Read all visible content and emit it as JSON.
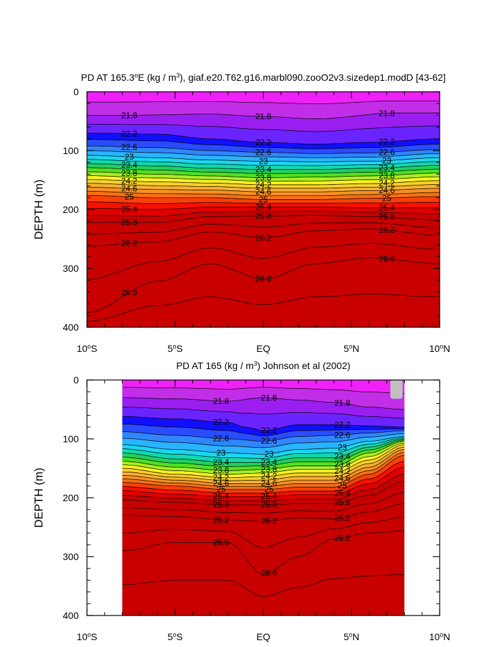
{
  "chart_data": [
    {
      "type": "contour",
      "title": "PD AT 165.3°E (kg / m³), giaf.e20.T62.g16.marbl090.zooO2v3.sizedep1.modD [43-62]",
      "xlabel": "",
      "ylabel": "DEPTH (m)",
      "xlim": [
        -10,
        10
      ],
      "ylim": [
        0,
        400
      ],
      "y_reversed": true,
      "x_ticks": [
        "10°S",
        "5°S",
        "EQ",
        "5°N",
        "10°N"
      ],
      "y_ticks": [
        "0",
        "100",
        "200",
        "300",
        "400"
      ],
      "contour_interval": 0.2,
      "contour_range": [
        21.6,
        27.0
      ],
      "data_extent_x": [
        -10,
        10
      ],
      "series": [
        {
          "name": "21.8",
          "x": [
            -8,
            -3,
            0,
            3,
            7.5
          ],
          "y": [
            40,
            38,
            42,
            46,
            36
          ]
        },
        {
          "name": "22.2",
          "x": [
            -10,
            -6,
            -3,
            0,
            3,
            6,
            10
          ],
          "y": [
            70,
            72,
            80,
            86,
            89,
            86,
            80
          ]
        },
        {
          "name": "22.6",
          "x": [
            -10,
            -6,
            -3,
            0,
            3,
            6,
            10
          ],
          "y": [
            92,
            95,
            100,
            103,
            105,
            104,
            98
          ]
        },
        {
          "name": "23",
          "x": [
            -10,
            -6,
            -3,
            0,
            3,
            6,
            10
          ],
          "y": [
            108,
            112,
            116,
            118,
            119,
            118,
            112
          ]
        },
        {
          "name": "23.4",
          "x": [
            -10,
            -6,
            -3,
            0,
            3,
            6,
            10
          ],
          "y": [
            122,
            126,
            130,
            132,
            132,
            130,
            125
          ]
        },
        {
          "name": "23.8",
          "x": [
            -10,
            -6,
            -3,
            0,
            3,
            6,
            10
          ],
          "y": [
            136,
            140,
            143,
            146,
            145,
            143,
            138
          ]
        },
        {
          "name": "24.2",
          "x": [
            -10,
            -6,
            -3,
            0,
            3,
            6,
            10
          ],
          "y": [
            149,
            153,
            155,
            158,
            158,
            156,
            151
          ]
        },
        {
          "name": "24.6",
          "x": [
            -10,
            -6,
            -3,
            0,
            3,
            6,
            10
          ],
          "y": [
            162,
            166,
            167,
            170,
            170,
            168,
            164
          ]
        },
        {
          "name": "25",
          "x": [
            -10,
            -6,
            -3,
            0,
            3,
            6,
            10
          ],
          "y": [
            176,
            180,
            180,
            183,
            183,
            181,
            178
          ]
        },
        {
          "name": "25.4",
          "x": [
            -10,
            -6,
            -3,
            0,
            3,
            6,
            10
          ],
          "y": [
            198,
            200,
            196,
            196,
            196,
            197,
            197
          ]
        },
        {
          "name": "25.8",
          "x": [
            -10,
            -6,
            -3,
            0,
            3,
            6,
            10
          ],
          "y": [
            222,
            222,
            212,
            211,
            210,
            212,
            218
          ]
        },
        {
          "name": "26.2",
          "x": [
            -10,
            -6,
            -3,
            0,
            3,
            6,
            10
          ],
          "y": [
            262,
            255,
            238,
            248,
            236,
            233,
            244
          ]
        },
        {
          "name": "26.6",
          "x": [
            -10,
            -6,
            -3,
            0,
            3,
            6,
            10
          ],
          "y": [
            375,
            322,
            292,
            318,
            292,
            282,
            292
          ]
        }
      ]
    },
    {
      "type": "contour",
      "title": "PD AT 165 (kg / m³) Johnson et al (2002)",
      "xlabel": "",
      "ylabel": "DEPTH (m)",
      "xlim": [
        -10,
        10
      ],
      "ylim": [
        0,
        400
      ],
      "y_reversed": true,
      "x_ticks": [
        "10°S",
        "5°S",
        "EQ",
        "5°N",
        "10°N"
      ],
      "y_ticks": [
        "0",
        "100",
        "200",
        "300",
        "400"
      ],
      "contour_interval": 0.2,
      "contour_range": [
        21.6,
        27.0
      ],
      "data_extent_x": [
        -8,
        8
      ],
      "series": [
        {
          "name": "21.8",
          "x": [
            -8,
            -5,
            -2,
            0,
            2,
            4,
            6,
            8
          ],
          "y": [
            30,
            32,
            36,
            30,
            34,
            38,
            46,
            50
          ]
        },
        {
          "name": "22.2",
          "x": [
            -8,
            -5,
            -2,
            -1,
            0,
            2,
            4,
            6,
            8
          ],
          "y": [
            62,
            66,
            72,
            80,
            86,
            76,
            76,
            78,
            80
          ]
        },
        {
          "name": "22.6",
          "x": [
            -8,
            -5,
            -2,
            0,
            2,
            4,
            6,
            8
          ],
          "y": [
            88,
            94,
            100,
            104,
            96,
            94,
            90,
            86
          ]
        },
        {
          "name": "23",
          "x": [
            -8,
            -5,
            -2,
            0,
            2,
            4,
            6,
            8
          ],
          "y": [
            110,
            118,
            124,
            126,
            118,
            116,
            104,
            96
          ]
        },
        {
          "name": "23.4",
          "x": [
            -8,
            -5,
            -2,
            0,
            2,
            4,
            6,
            8
          ],
          "y": [
            124,
            134,
            140,
            140,
            132,
            132,
            114,
            100
          ]
        },
        {
          "name": "23.8",
          "x": [
            -8,
            -5,
            -2,
            0,
            2,
            4,
            6,
            8
          ],
          "y": [
            138,
            148,
            154,
            152,
            146,
            146,
            124,
            104
          ]
        },
        {
          "name": "24.2",
          "x": [
            -8,
            -5,
            -2,
            0,
            2,
            4,
            6,
            8
          ],
          "y": [
            150,
            160,
            166,
            164,
            158,
            158,
            136,
            110
          ]
        },
        {
          "name": "24.6",
          "x": [
            -8,
            -5,
            -2,
            0,
            2,
            4,
            6,
            8
          ],
          "y": [
            162,
            170,
            176,
            176,
            170,
            170,
            148,
            118
          ]
        },
        {
          "name": "25",
          "x": [
            -8,
            -5,
            -2,
            0,
            2,
            4,
            6,
            8
          ],
          "y": [
            174,
            180,
            186,
            186,
            182,
            182,
            160,
            128
          ]
        },
        {
          "name": "25.4",
          "x": [
            -8,
            -5,
            -2,
            0,
            2,
            4,
            6,
            8
          ],
          "y": [
            188,
            194,
            198,
            198,
            195,
            195,
            176,
            148
          ]
        },
        {
          "name": "25.8",
          "x": [
            -8,
            -5,
            -2,
            0,
            2,
            4,
            6,
            8
          ],
          "y": [
            204,
            208,
            212,
            212,
            210,
            210,
            196,
            172
          ]
        },
        {
          "name": "26.2",
          "x": [
            -8,
            -5,
            -2,
            0,
            2,
            4,
            6,
            8
          ],
          "y": [
            230,
            232,
            238,
            240,
            234,
            236,
            224,
            210
          ]
        },
        {
          "name": "26.6",
          "x": [
            -8,
            -5,
            -2,
            0,
            2,
            4,
            6,
            8
          ],
          "y": [
            290,
            276,
            276,
            330,
            300,
            270,
            260,
            256
          ]
        }
      ]
    }
  ],
  "colors": {
    "magenta": "#f020f8",
    "violet": "#c22ee8",
    "purple": "#9a1ef0",
    "indigo": "#6a24ff",
    "blue": "#1010ff",
    "blue2": "#2a4cff",
    "blue3": "#2f86ff",
    "sky": "#29b4ff",
    "cyan": "#18d8f0",
    "teal": "#10d8b0",
    "green": "#20d060",
    "green2": "#50e020",
    "lime": "#a8f020",
    "yellow": "#f8f020",
    "yellow2": "#f8d028",
    "orange1": "#f8b030",
    "orange2": "#f89020",
    "orange3": "#f87010",
    "red1": "#f84008",
    "red2": "#f81000",
    "red3": "#e00000",
    "darkred": "#c80000",
    "missing": "#c0c0c0"
  }
}
